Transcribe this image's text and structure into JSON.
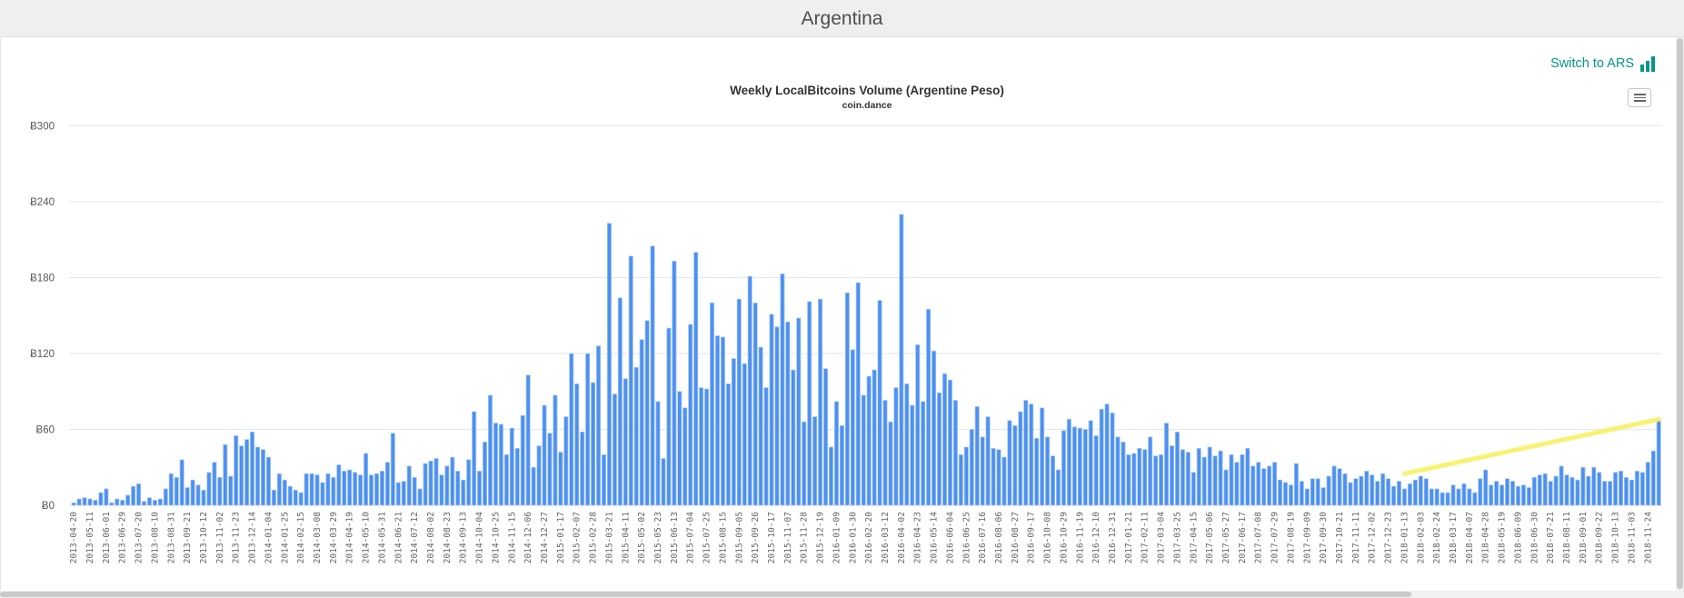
{
  "page": {
    "title": "Argentina"
  },
  "toolbar": {
    "switch_label": "Switch to ARS",
    "accent_color": "#069488"
  },
  "chart_data": {
    "type": "bar",
    "title": "Weekly LocalBitcoins Volume (Argentine Peso)",
    "subtitle": "coin.dance",
    "xlabel": "",
    "ylabel": "",
    "currency_symbol": "Ƀ",
    "ylim": [
      0,
      300
    ],
    "yticks": [
      0,
      60,
      120,
      180,
      240,
      300
    ],
    "y_tick_labels": [
      "Ƀ0",
      "Ƀ60",
      "Ƀ120",
      "Ƀ180",
      "Ƀ240",
      "Ƀ300"
    ],
    "grid": true,
    "legend": false,
    "bar_color": "#4d90f0",
    "bar_edge_color": "#a6c8f5",
    "grid_color": "#e6e6e6",
    "label_every_n_bars": 3,
    "x_tick_labels": [
      "2013-04-20",
      "2013-05-11",
      "2013-06-01",
      "2013-06-29",
      "2013-07-20",
      "2013-08-10",
      "2013-08-31",
      "2013-09-21",
      "2013-10-12",
      "2013-11-02",
      "2013-11-23",
      "2013-12-14",
      "2014-01-04",
      "2014-01-25",
      "2014-02-15",
      "2014-03-08",
      "2014-03-29",
      "2014-04-19",
      "2014-05-10",
      "2014-05-31",
      "2014-06-21",
      "2014-07-12",
      "2014-08-02",
      "2014-08-23",
      "2014-09-13",
      "2014-10-04",
      "2014-10-25",
      "2014-11-15",
      "2014-12-06",
      "2014-12-27",
      "2015-01-17",
      "2015-02-07",
      "2015-02-28",
      "2015-03-21",
      "2015-04-11",
      "2015-05-02",
      "2015-05-23",
      "2015-06-13",
      "2015-07-04",
      "2015-07-25",
      "2015-08-15",
      "2015-09-05",
      "2015-09-26",
      "2015-10-17",
      "2015-11-07",
      "2015-11-28",
      "2015-12-19",
      "2016-01-09",
      "2016-01-30",
      "2016-02-20",
      "2016-03-12",
      "2016-04-02",
      "2016-04-23",
      "2016-05-14",
      "2016-06-04",
      "2016-06-25",
      "2016-07-16",
      "2016-08-06",
      "2016-08-27",
      "2016-09-17",
      "2016-10-08",
      "2016-10-29",
      "2016-11-19",
      "2016-12-10",
      "2016-12-31",
      "2017-01-21",
      "2017-02-11",
      "2017-03-04",
      "2017-03-25",
      "2017-04-15",
      "2017-05-06",
      "2017-05-27",
      "2017-06-17",
      "2017-07-08",
      "2017-07-29",
      "2017-08-19",
      "2017-09-09",
      "2017-09-30",
      "2017-10-21",
      "2017-11-11",
      "2017-12-02",
      "2017-12-23",
      "2018-01-13",
      "2018-02-03",
      "2018-02-24",
      "2018-03-17",
      "2018-04-07",
      "2018-04-28",
      "2018-05-19",
      "2018-06-09",
      "2018-06-30",
      "2018-07-21",
      "2018-08-11",
      "2018-09-01",
      "2018-09-22",
      "2018-10-13",
      "2018-11-03",
      "2018-11-24"
    ],
    "values": [
      2,
      5,
      6,
      5,
      4,
      10,
      13,
      2,
      5,
      4,
      8,
      15,
      17,
      3,
      6,
      4,
      5,
      13,
      25,
      22,
      36,
      14,
      20,
      16,
      12,
      26,
      34,
      22,
      48,
      23,
      55,
      47,
      52,
      58,
      46,
      44,
      38,
      12,
      25,
      20,
      15,
      12,
      10,
      25,
      25,
      24,
      18,
      25,
      22,
      32,
      27,
      28,
      26,
      24,
      41,
      24,
      25,
      27,
      34,
      57,
      18,
      19,
      31,
      22,
      13,
      33,
      35,
      37,
      24,
      31,
      38,
      27,
      20,
      36,
      74,
      27,
      50,
      87,
      65,
      64,
      40,
      61,
      45,
      71,
      103,
      30,
      47,
      79,
      57,
      87,
      42,
      70,
      120,
      96,
      58,
      120,
      97,
      126,
      40,
      223,
      88,
      164,
      100,
      197,
      109,
      131,
      146,
      205,
      82,
      37,
      140,
      193,
      90,
      77,
      143,
      200,
      93,
      92,
      160,
      134,
      133,
      96,
      116,
      163,
      112,
      181,
      160,
      125,
      93,
      151,
      141,
      183,
      145,
      107,
      148,
      66,
      161,
      70,
      163,
      108,
      46,
      82,
      63,
      168,
      123,
      176,
      87,
      102,
      107,
      162,
      83,
      66,
      93,
      230,
      96,
      79,
      127,
      82,
      155,
      122,
      89,
      104,
      99,
      83,
      40,
      46,
      60,
      78,
      54,
      70,
      45,
      44,
      38,
      67,
      63,
      74,
      83,
      80,
      53,
      77,
      54,
      39,
      28,
      59,
      68,
      62,
      61,
      60,
      67,
      55,
      76,
      80,
      73,
      54,
      50,
      40,
      41,
      45,
      44,
      54,
      39,
      40,
      65,
      47,
      58,
      44,
      42,
      26,
      45,
      38,
      46,
      39,
      43,
      28,
      40,
      34,
      40,
      45,
      31,
      34,
      29,
      31,
      34,
      20,
      18,
      16,
      33,
      19,
      13,
      21,
      21,
      14,
      23,
      31,
      29,
      25,
      18,
      21,
      23,
      27,
      24,
      19,
      25,
      21,
      15,
      19,
      13,
      17,
      20,
      23,
      21,
      13,
      13,
      10,
      10,
      16,
      13,
      17,
      13,
      10,
      21,
      28,
      16,
      19,
      16,
      21,
      19,
      15,
      16,
      14,
      22,
      24,
      25,
      19,
      23,
      31,
      24,
      22,
      20,
      30,
      23,
      30,
      26,
      19,
      19,
      26,
      27,
      22,
      20,
      27,
      26,
      34,
      43,
      67
    ],
    "trend_line": {
      "color": "#f8f163",
      "start_bar": 246,
      "end_bar": 293,
      "start_value": 25,
      "end_value": 68
    }
  }
}
